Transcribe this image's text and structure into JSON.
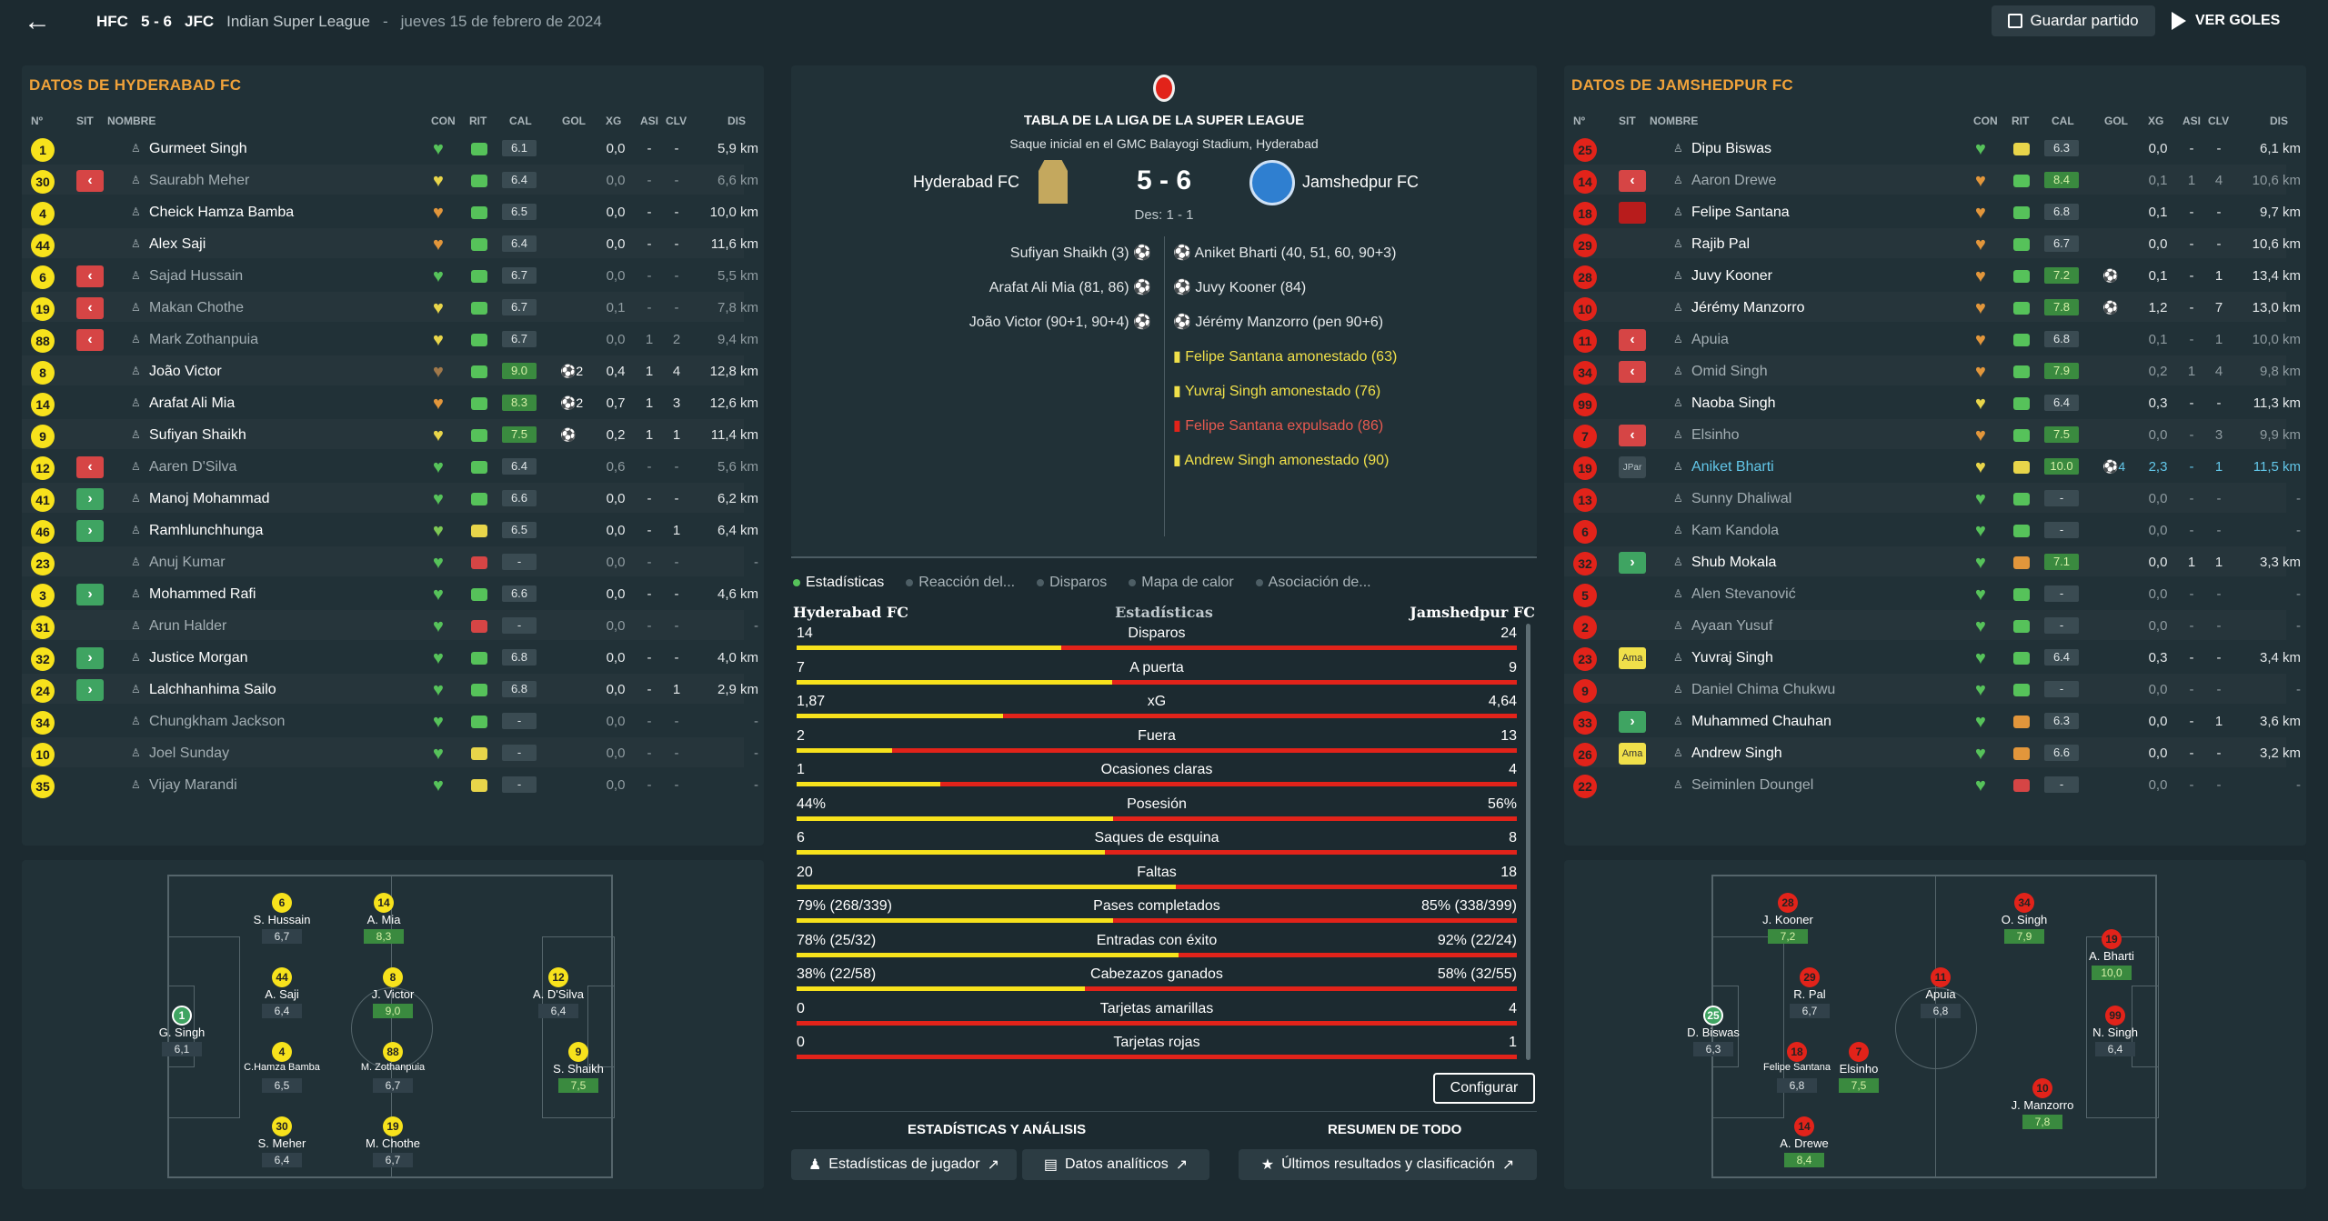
{
  "header": {
    "home_abbr": "HFC",
    "score": "5 - 6",
    "away_abbr": "JFC",
    "league": "Indian Super League",
    "separator": "-",
    "date": "jueves 15 de febrero de 2024",
    "save_label": "Guardar partido",
    "goals_label": "VER GOLES"
  },
  "columns": {
    "num": "Nº",
    "sit": "SIT",
    "name": "NOMBRE",
    "con": "CON",
    "rit": "RIT",
    "cal": "CAL",
    "gol": "GOL",
    "xg": "XG",
    "asi": "ASI",
    "clv": "CLV",
    "dis": "DIS"
  },
  "home": {
    "title": "DATOS DE HYDERABAD FC",
    "players": [
      {
        "num": "1",
        "sit": "",
        "name": "Gurmeet Singh",
        "con": "#56c25a",
        "rit": "g",
        "cal": "6.1",
        "good": false,
        "gol": "",
        "xg": "0,0",
        "asi": "-",
        "clv": "-",
        "dis": "5,9 km",
        "dim": false
      },
      {
        "num": "30",
        "sit": "out",
        "name": "Saurabh Meher",
        "con": "#e8d54a",
        "rit": "g",
        "cal": "6.4",
        "good": false,
        "gol": "",
        "xg": "0,0",
        "asi": "-",
        "clv": "-",
        "dis": "6,6 km",
        "dim": true
      },
      {
        "num": "4",
        "sit": "",
        "name": "Cheick Hamza Bamba",
        "con": "#e2963b",
        "rit": "g",
        "cal": "6.5",
        "good": false,
        "gol": "",
        "xg": "0,0",
        "asi": "-",
        "clv": "-",
        "dis": "10,0 km",
        "dim": false
      },
      {
        "num": "44",
        "sit": "",
        "name": "Alex Saji",
        "con": "#e2963b",
        "rit": "g",
        "cal": "6.4",
        "good": false,
        "gol": "",
        "xg": "0,0",
        "asi": "-",
        "clv": "-",
        "dis": "11,6 km",
        "dim": false
      },
      {
        "num": "6",
        "sit": "out",
        "name": "Sajad Hussain",
        "con": "#56c25a",
        "rit": "g",
        "cal": "6.7",
        "good": false,
        "gol": "",
        "xg": "0,0",
        "asi": "-",
        "clv": "-",
        "dis": "5,5 km",
        "dim": true
      },
      {
        "num": "19",
        "sit": "out",
        "name": "Makan Chothe",
        "con": "#e8d54a",
        "rit": "g",
        "cal": "6.7",
        "good": false,
        "gol": "",
        "xg": "0,1",
        "asi": "-",
        "clv": "-",
        "dis": "7,8 km",
        "dim": true
      },
      {
        "num": "88",
        "sit": "out",
        "name": "Mark Zothanpuia",
        "con": "#e8d54a",
        "rit": "g",
        "cal": "6.7",
        "good": false,
        "gol": "",
        "xg": "0,0",
        "asi": "1",
        "clv": "2",
        "dis": "9,4 km",
        "dim": true
      },
      {
        "num": "8",
        "sit": "",
        "name": "João Victor",
        "con": "#a0784a",
        "rit": "g",
        "cal": "9.0",
        "good": true,
        "gol": "⚽2",
        "xg": "0,4",
        "asi": "1",
        "clv": "4",
        "dis": "12,8 km",
        "dim": false
      },
      {
        "num": "14",
        "sit": "",
        "name": "Arafat Ali Mia",
        "con": "#e2963b",
        "rit": "g",
        "cal": "8.3",
        "good": true,
        "gol": "⚽2",
        "xg": "0,7",
        "asi": "1",
        "clv": "3",
        "dis": "12,6 km",
        "dim": false
      },
      {
        "num": "9",
        "sit": "",
        "name": "Sufiyan Shaikh",
        "con": "#e8d54a",
        "rit": "g",
        "cal": "7.5",
        "good": true,
        "gol": "⚽",
        "xg": "0,2",
        "asi": "1",
        "clv": "1",
        "dis": "11,4 km",
        "dim": false
      },
      {
        "num": "12",
        "sit": "out",
        "name": "Aaren D'Silva",
        "con": "#56c25a",
        "rit": "g",
        "cal": "6.4",
        "good": false,
        "gol": "",
        "xg": "0,6",
        "asi": "-",
        "clv": "-",
        "dis": "5,6 km",
        "dim": true
      },
      {
        "num": "41",
        "sit": "in",
        "name": "Manoj Mohammad",
        "con": "#56c25a",
        "rit": "g",
        "cal": "6.6",
        "good": false,
        "gol": "",
        "xg": "0,0",
        "asi": "-",
        "clv": "-",
        "dis": "6,2 km",
        "dim": false
      },
      {
        "num": "46",
        "sit": "in",
        "name": "Ramhlunchhunga",
        "con": "#7dc854",
        "rit": "y",
        "cal": "6.5",
        "good": false,
        "gol": "",
        "xg": "0,0",
        "asi": "-",
        "clv": "1",
        "dis": "6,4 km",
        "dim": false
      },
      {
        "num": "23",
        "sit": "",
        "name": "Anuj Kumar",
        "con": "#56c25a",
        "rit": "r",
        "cal": "-",
        "good": false,
        "gol": "",
        "xg": "0,0",
        "asi": "-",
        "clv": "-",
        "dis": "-",
        "dim": true
      },
      {
        "num": "3",
        "sit": "in",
        "name": "Mohammed Rafi",
        "con": "#56c25a",
        "rit": "g",
        "cal": "6.6",
        "good": false,
        "gol": "",
        "xg": "0,0",
        "asi": "-",
        "clv": "-",
        "dis": "4,6 km",
        "dim": false
      },
      {
        "num": "31",
        "sit": "",
        "name": "Arun Halder",
        "con": "#56c25a",
        "rit": "r",
        "cal": "-",
        "good": false,
        "gol": "",
        "xg": "0,0",
        "asi": "-",
        "clv": "-",
        "dis": "-",
        "dim": true
      },
      {
        "num": "32",
        "sit": "in",
        "name": "Justice Morgan",
        "con": "#56c25a",
        "rit": "g",
        "cal": "6.8",
        "good": false,
        "gol": "",
        "xg": "0,0",
        "asi": "-",
        "clv": "-",
        "dis": "4,0 km",
        "dim": false
      },
      {
        "num": "24",
        "sit": "in",
        "name": "Lalchhanhima Sailo",
        "con": "#56c25a",
        "rit": "g",
        "cal": "6.8",
        "good": false,
        "gol": "",
        "xg": "0,0",
        "asi": "-",
        "clv": "1",
        "dis": "2,9 km",
        "dim": false
      },
      {
        "num": "34",
        "sit": "",
        "name": "Chungkham Jackson",
        "con": "#56c25a",
        "rit": "g",
        "cal": "-",
        "good": false,
        "gol": "",
        "xg": "0,0",
        "asi": "-",
        "clv": "-",
        "dis": "-",
        "dim": true
      },
      {
        "num": "10",
        "sit": "",
        "name": "Joel Sunday",
        "con": "#56c25a",
        "rit": "y",
        "cal": "-",
        "good": false,
        "gol": "",
        "xg": "0,0",
        "asi": "-",
        "clv": "-",
        "dis": "-",
        "dim": true
      },
      {
        "num": "35",
        "sit": "",
        "name": "Vijay Marandi",
        "con": "#56c25a",
        "rit": "y",
        "cal": "-",
        "good": false,
        "gol": "",
        "xg": "0,0",
        "asi": "-",
        "clv": "-",
        "dis": "-",
        "dim": true
      }
    ],
    "pitch": [
      {
        "num": "6",
        "name": "S. Hussain",
        "rate": "6,7",
        "good": false,
        "gk": false
      },
      {
        "num": "14",
        "name": "A. Mia",
        "rate": "8,3",
        "good": true,
        "gk": false
      },
      {
        "num": "44",
        "name": "A. Saji",
        "rate": "6,4",
        "good": false,
        "gk": false
      },
      {
        "num": "8",
        "name": "J. Victor",
        "rate": "9,0",
        "good": true,
        "gk": false
      },
      {
        "num": "12",
        "name": "A. D'Silva",
        "rate": "6,4",
        "good": false,
        "gk": false
      },
      {
        "num": "1",
        "name": "G. Singh",
        "rate": "6,1",
        "good": false,
        "gk": true
      },
      {
        "num": "4",
        "name": "C.Hamza Bamba",
        "rate": "6,5",
        "good": false,
        "gk": false
      },
      {
        "num": "88",
        "name": "M. Zothanpuia",
        "rate": "6,7",
        "good": false,
        "gk": false
      },
      {
        "num": "9",
        "name": "S. Shaikh",
        "rate": "7,5",
        "good": true,
        "gk": false
      },
      {
        "num": "30",
        "name": "S. Meher",
        "rate": "6,4",
        "good": false,
        "gk": false
      },
      {
        "num": "19",
        "name": "M. Chothe",
        "rate": "6,7",
        "good": false,
        "gk": false
      }
    ]
  },
  "away": {
    "title": "DATOS DE JAMSHEDPUR FC",
    "players": [
      {
        "num": "25",
        "sit": "",
        "name": "Dipu Biswas",
        "con": "#56c25a",
        "rit": "y",
        "cal": "6.3",
        "good": false,
        "gol": "",
        "xg": "0,0",
        "asi": "-",
        "clv": "-",
        "dis": "6,1 km",
        "dim": false
      },
      {
        "num": "14",
        "sit": "out",
        "name": "Aaron Drewe",
        "con": "#e2963b",
        "rit": "g",
        "cal": "8.4",
        "good": true,
        "gol": "",
        "xg": "0,1",
        "asi": "1",
        "clv": "4",
        "dis": "10,6 km",
        "dim": true
      },
      {
        "num": "18",
        "sit": "roja",
        "name": "Felipe Santana",
        "con": "#e2963b",
        "rit": "g",
        "cal": "6.8",
        "good": false,
        "gol": "",
        "xg": "0,1",
        "asi": "-",
        "clv": "-",
        "dis": "9,7 km",
        "dim": false
      },
      {
        "num": "29",
        "sit": "",
        "name": "Rajib Pal",
        "con": "#e2963b",
        "rit": "g",
        "cal": "6.7",
        "good": false,
        "gol": "",
        "xg": "0,0",
        "asi": "-",
        "clv": "-",
        "dis": "10,6 km",
        "dim": false
      },
      {
        "num": "28",
        "sit": "",
        "name": "Juvy Kooner",
        "con": "#e2963b",
        "rit": "g",
        "cal": "7.2",
        "good": true,
        "gol": "⚽",
        "xg": "0,1",
        "asi": "-",
        "clv": "1",
        "dis": "13,4 km",
        "dim": false
      },
      {
        "num": "10",
        "sit": "",
        "name": "Jérémy Manzorro",
        "con": "#e2963b",
        "rit": "g",
        "cal": "7.8",
        "good": true,
        "gol": "⚽",
        "xg": "1,2",
        "asi": "-",
        "clv": "7",
        "dis": "13,0 km",
        "dim": false
      },
      {
        "num": "11",
        "sit": "out",
        "name": "Apuia",
        "con": "#e2963b",
        "rit": "g",
        "cal": "6.8",
        "good": false,
        "gol": "",
        "xg": "0,1",
        "asi": "-",
        "clv": "1",
        "dis": "10,0 km",
        "dim": true
      },
      {
        "num": "34",
        "sit": "out",
        "name": "Omid Singh",
        "con": "#e2963b",
        "rit": "g",
        "cal": "7.9",
        "good": true,
        "gol": "",
        "xg": "0,2",
        "asi": "1",
        "clv": "4",
        "dis": "9,8 km",
        "dim": true
      },
      {
        "num": "99",
        "sit": "",
        "name": "Naoba Singh",
        "con": "#e8d54a",
        "rit": "g",
        "cal": "6.4",
        "good": false,
        "gol": "",
        "xg": "0,3",
        "asi": "-",
        "clv": "-",
        "dis": "11,3 km",
        "dim": false
      },
      {
        "num": "7",
        "sit": "out",
        "name": "Elsinho",
        "con": "#e2963b",
        "rit": "g",
        "cal": "7.5",
        "good": true,
        "gol": "",
        "xg": "0,0",
        "asi": "-",
        "clv": "3",
        "dis": "9,9 km",
        "dim": true
      },
      {
        "num": "19",
        "sit": "jpar",
        "name": "Aniket Bharti",
        "con": "#e8d54a",
        "rit": "y",
        "cal": "10.0",
        "good": true,
        "gol": "⚽4",
        "xg": "2,3",
        "asi": "-",
        "clv": "1",
        "dis": "11,5 km",
        "dim": false,
        "hl": true
      },
      {
        "num": "13",
        "sit": "",
        "name": "Sunny Dhaliwal",
        "con": "#56c25a",
        "rit": "g",
        "cal": "-",
        "good": false,
        "gol": "",
        "xg": "0,0",
        "asi": "-",
        "clv": "-",
        "dis": "-",
        "dim": true
      },
      {
        "num": "6",
        "sit": "",
        "name": "Kam Kandola",
        "con": "#56c25a",
        "rit": "g",
        "cal": "-",
        "good": false,
        "gol": "",
        "xg": "0,0",
        "asi": "-",
        "clv": "-",
        "dis": "-",
        "dim": true
      },
      {
        "num": "32",
        "sit": "in",
        "name": "Shub Mokala",
        "con": "#56c25a",
        "rit": "o",
        "cal": "7.1",
        "good": true,
        "gol": "",
        "xg": "0,0",
        "asi": "1",
        "clv": "1",
        "dis": "3,3 km",
        "dim": false
      },
      {
        "num": "5",
        "sit": "",
        "name": "Alen Stevanović",
        "con": "#56c25a",
        "rit": "g",
        "cal": "-",
        "good": false,
        "gol": "",
        "xg": "0,0",
        "asi": "-",
        "clv": "-",
        "dis": "-",
        "dim": true
      },
      {
        "num": "2",
        "sit": "",
        "name": "Ayaan Yusuf",
        "con": "#56c25a",
        "rit": "g",
        "cal": "-",
        "good": false,
        "gol": "",
        "xg": "0,0",
        "asi": "-",
        "clv": "-",
        "dis": "-",
        "dim": true
      },
      {
        "num": "23",
        "sit": "ama",
        "name": "Yuvraj Singh",
        "con": "#56c25a",
        "rit": "g",
        "cal": "6.4",
        "good": false,
        "gol": "",
        "xg": "0,3",
        "asi": "-",
        "clv": "-",
        "dis": "3,4 km",
        "dim": false
      },
      {
        "num": "9",
        "sit": "",
        "name": "Daniel Chima Chukwu",
        "con": "#56c25a",
        "rit": "g",
        "cal": "-",
        "good": false,
        "gol": "",
        "xg": "0,0",
        "asi": "-",
        "clv": "-",
        "dis": "-",
        "dim": true
      },
      {
        "num": "33",
        "sit": "in",
        "name": "Muhammed Chauhan",
        "con": "#56c25a",
        "rit": "o",
        "cal": "6.3",
        "good": false,
        "gol": "",
        "xg": "0,0",
        "asi": "-",
        "clv": "1",
        "dis": "3,6 km",
        "dim": false
      },
      {
        "num": "26",
        "sit": "ama",
        "name": "Andrew Singh",
        "con": "#56c25a",
        "rit": "o",
        "cal": "6.6",
        "good": false,
        "gol": "",
        "xg": "0,0",
        "asi": "-",
        "clv": "-",
        "dis": "3,2 km",
        "dim": false
      },
      {
        "num": "22",
        "sit": "",
        "name": "Seiminlen Doungel",
        "con": "#56c25a",
        "rit": "r",
        "cal": "-",
        "good": false,
        "gol": "",
        "xg": "0,0",
        "asi": "-",
        "clv": "-",
        "dis": "-",
        "dim": true
      }
    ],
    "pitch": [
      {
        "num": "28",
        "name": "J. Kooner",
        "rate": "7,2",
        "good": true,
        "gk": false
      },
      {
        "num": "34",
        "name": "O. Singh",
        "rate": "7,9",
        "good": true,
        "gk": false
      },
      {
        "num": "19",
        "name": "A. Bharti",
        "rate": "10,0",
        "good": true,
        "gk": false
      },
      {
        "num": "29",
        "name": "R. Pal",
        "rate": "6,7",
        "good": false,
        "gk": false
      },
      {
        "num": "11",
        "name": "Apuia",
        "rate": "6,8",
        "good": false,
        "gk": false
      },
      {
        "num": "25",
        "name": "D. Biswas",
        "rate": "6,3",
        "good": false,
        "gk": true
      },
      {
        "num": "99",
        "name": "N. Singh",
        "rate": "6,4",
        "good": false,
        "gk": false
      },
      {
        "num": "18",
        "name": "Felipe Santana",
        "rate": "6,8",
        "good": false,
        "gk": false
      },
      {
        "num": "7",
        "name": "Elsinho",
        "rate": "7,5",
        "good": true,
        "gk": false
      },
      {
        "num": "10",
        "name": "J. Manzorro",
        "rate": "7,8",
        "good": true,
        "gk": false
      },
      {
        "num": "14",
        "name": "A. Drewe",
        "rate": "8,4",
        "good": true,
        "gk": false
      }
    ]
  },
  "match": {
    "competition": "TABLA DE LA LIGA DE LA SUPER LEAGUE",
    "kickoff": "Saque inicial en el GMC Balayogi Stadium, Hyderabad",
    "home_team": "Hyderabad FC",
    "away_team": "Jamshedpur FC",
    "score": "5 - 6",
    "halftime": "Des: 1 - 1",
    "home_events": [
      "Sufiyan Shaikh (3)",
      "Arafat Ali Mia (81, 86)",
      "João Victor (90+1, 90+4)"
    ],
    "away_events": [
      {
        "text": "Aniket Bharti (40, 51, 60, 90+3)",
        "type": "goal"
      },
      {
        "text": "Juvy Kooner (84)",
        "type": "goal"
      },
      {
        "text": "Jérémy Manzorro (pen 90+6)",
        "type": "goal"
      },
      {
        "text": "Felipe Santana amonestado (63)",
        "type": "yellow"
      },
      {
        "text": "Yuvraj Singh amonestado (76)",
        "type": "yellow"
      },
      {
        "text": "Felipe Santana expulsado (86)",
        "type": "red"
      },
      {
        "text": "Andrew Singh amonestado (90)",
        "type": "yellow"
      }
    ]
  },
  "tabs": [
    "Estadísticas",
    "Reacción del...",
    "Disparos",
    "Mapa de calor",
    "Asociación de..."
  ],
  "stats": {
    "home_label": "Hyderabad FC",
    "center_label": "Estadísticas",
    "away_label": "Jamshedpur FC",
    "rows": [
      {
        "name": "Disparos",
        "home": "14",
        "away": "24",
        "share": 0.368
      },
      {
        "name": "A puerta",
        "home": "7",
        "away": "9",
        "share": 0.4375
      },
      {
        "name": "xG",
        "home": "1,87",
        "away": "4,64",
        "share": 0.287
      },
      {
        "name": "Fuera",
        "home": "2",
        "away": "13",
        "share": 0.133
      },
      {
        "name": "Ocasiones claras",
        "home": "1",
        "away": "4",
        "share": 0.2
      },
      {
        "name": "Posesión",
        "home": "44%",
        "away": "56%",
        "share": 0.44
      },
      {
        "name": "Saques de esquina",
        "home": "6",
        "away": "8",
        "share": 0.4286
      },
      {
        "name": "Faltas",
        "home": "20",
        "away": "18",
        "share": 0.526
      },
      {
        "name": "Pases completados",
        "home": "79% (268/339)",
        "away": "85% (338/399)",
        "share": 0.44
      },
      {
        "name": "Entradas con éxito",
        "home": "78% (25/32)",
        "away": "92% (22/24)",
        "share": 0.53
      },
      {
        "name": "Cabezazos ganados",
        "home": "38% (22/58)",
        "away": "58% (32/55)",
        "share": 0.4
      },
      {
        "name": "Tarjetas amarillas",
        "home": "0",
        "away": "4",
        "share": 0
      },
      {
        "name": "Tarjetas rojas",
        "home": "0",
        "away": "1",
        "share": 0
      }
    ]
  },
  "configure_label": "Configurar",
  "bottom": {
    "analysis_title": "ESTADÍSTICAS Y ANÁLISIS",
    "summary_title": "RESUMEN DE TODO",
    "player_stats": "Estadísticas de jugador",
    "analytics": "Datos analíticos",
    "results": "Últimos resultados y clasificación"
  }
}
